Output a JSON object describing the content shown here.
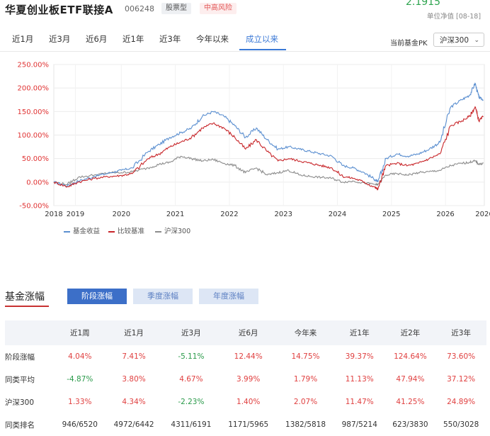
{
  "header": {
    "fund_name": "华夏创业板ETF联接A",
    "fund_code": "006248",
    "tag_type": "股票型",
    "tag_risk": "中高风险",
    "nav_value": "2.1915",
    "nav_label": "单位净值 [08-18]"
  },
  "tabs": [
    {
      "label": "近1月",
      "active": false
    },
    {
      "label": "近3月",
      "active": false
    },
    {
      "label": "近6月",
      "active": false
    },
    {
      "label": "近1年",
      "active": false
    },
    {
      "label": "近3年",
      "active": false
    },
    {
      "label": "今年以来",
      "active": false
    },
    {
      "label": "成立以来",
      "active": true
    }
  ],
  "pk": {
    "label": "当前基金PK",
    "selected": "沪深300"
  },
  "chart_data": {
    "type": "line",
    "y_ticks": [
      "250.00%",
      "200.00%",
      "150.00%",
      "100.00%",
      "50.00%",
      "0.00%",
      "-50.00%"
    ],
    "ylim": [
      -50,
      250
    ],
    "x_ticks": [
      "2018",
      "2019",
      "2020",
      "2021",
      "2022",
      "2023",
      "2024",
      "2025",
      "2026",
      "2026"
    ],
    "grid": true,
    "legend_position": "bottom-left",
    "series": [
      {
        "name": "基金收益",
        "color": "#5b8fd0",
        "x": [
          2018.75,
          2019.0,
          2019.2,
          2019.5,
          2019.8,
          2020.0,
          2020.2,
          2020.5,
          2020.7,
          2020.9,
          2021.1,
          2021.3,
          2021.5,
          2021.7,
          2021.9,
          2022.1,
          2022.3,
          2022.5,
          2022.7,
          2022.9,
          2023.1,
          2023.3,
          2023.5,
          2023.7,
          2023.9,
          2024.1,
          2024.3,
          2024.5,
          2024.7,
          2024.75,
          2024.9,
          2025.1,
          2025.3,
          2025.5,
          2025.7,
          2025.9,
          2026.1,
          2026.3,
          2026.45,
          2026.55,
          2026.62,
          2026.7
        ],
        "values": [
          0,
          -8,
          2,
          12,
          20,
          25,
          30,
          65,
          80,
          95,
          105,
          115,
          140,
          150,
          140,
          120,
          95,
          115,
          90,
          70,
          75,
          70,
          65,
          60,
          55,
          35,
          30,
          20,
          5,
          0,
          50,
          60,
          55,
          60,
          70,
          85,
          160,
          175,
          185,
          210,
          180,
          175
        ]
      },
      {
        "name": "比较基准",
        "color": "#c8262a",
        "x": [
          2018.75,
          2019.0,
          2019.2,
          2019.5,
          2019.8,
          2020.0,
          2020.2,
          2020.5,
          2020.7,
          2020.9,
          2021.1,
          2021.3,
          2021.5,
          2021.7,
          2021.9,
          2022.1,
          2022.3,
          2022.5,
          2022.7,
          2022.9,
          2023.1,
          2023.3,
          2023.5,
          2023.7,
          2023.9,
          2024.1,
          2024.3,
          2024.5,
          2024.7,
          2024.75,
          2024.9,
          2025.1,
          2025.3,
          2025.5,
          2025.7,
          2025.9,
          2026.1,
          2026.3,
          2026.45,
          2026.55,
          2026.62,
          2026.7
        ],
        "values": [
          0,
          -10,
          0,
          8,
          12,
          14,
          18,
          50,
          60,
          75,
          85,
          95,
          115,
          125,
          115,
          95,
          70,
          90,
          65,
          45,
          50,
          45,
          40,
          35,
          30,
          12,
          8,
          0,
          -12,
          -15,
          35,
          40,
          35,
          40,
          50,
          60,
          120,
          130,
          140,
          160,
          130,
          140
        ]
      },
      {
        "name": "沪深300",
        "color": "#8c8c8c",
        "x": [
          2018.75,
          2019.0,
          2019.2,
          2019.5,
          2019.8,
          2020.0,
          2020.2,
          2020.5,
          2020.7,
          2020.9,
          2021.1,
          2021.3,
          2021.5,
          2021.7,
          2021.9,
          2022.1,
          2022.3,
          2022.5,
          2022.7,
          2022.9,
          2023.1,
          2023.3,
          2023.5,
          2023.7,
          2023.9,
          2024.1,
          2024.3,
          2024.5,
          2024.7,
          2024.75,
          2024.9,
          2025.1,
          2025.3,
          2025.5,
          2025.7,
          2025.9,
          2026.1,
          2026.3,
          2026.45,
          2026.55,
          2026.62,
          2026.7
        ],
        "values": [
          0,
          -5,
          10,
          15,
          20,
          20,
          22,
          30,
          38,
          42,
          55,
          50,
          45,
          48,
          40,
          35,
          20,
          30,
          15,
          20,
          25,
          15,
          12,
          10,
          8,
          0,
          2,
          -2,
          -5,
          -5,
          15,
          18,
          15,
          20,
          22,
          25,
          35,
          40,
          42,
          45,
          38,
          40
        ]
      }
    ]
  },
  "section": {
    "title": "基金涨幅",
    "buttons": [
      {
        "label": "阶段涨幅",
        "active": true
      },
      {
        "label": "季度涨幅",
        "active": false
      },
      {
        "label": "年度涨幅",
        "active": false
      }
    ]
  },
  "table": {
    "headers": [
      "",
      "近1周",
      "近1月",
      "近3月",
      "近6月",
      "今年来",
      "近1年",
      "近2年",
      "近3年"
    ],
    "rows": [
      {
        "label": "阶段涨幅",
        "cells": [
          {
            "v": "4.04%",
            "c": "up"
          },
          {
            "v": "7.41%",
            "c": "up"
          },
          {
            "v": "-5.11%",
            "c": "down"
          },
          {
            "v": "12.44%",
            "c": "up"
          },
          {
            "v": "14.75%",
            "c": "up"
          },
          {
            "v": "39.37%",
            "c": "up"
          },
          {
            "v": "124.64%",
            "c": "up"
          },
          {
            "v": "73.60%",
            "c": "up"
          }
        ]
      },
      {
        "label": "同类平均",
        "cells": [
          {
            "v": "-4.87%",
            "c": "down"
          },
          {
            "v": "3.80%",
            "c": "up"
          },
          {
            "v": "4.67%",
            "c": "up"
          },
          {
            "v": "3.99%",
            "c": "up"
          },
          {
            "v": "1.79%",
            "c": "up"
          },
          {
            "v": "11.13%",
            "c": "up"
          },
          {
            "v": "47.94%",
            "c": "up"
          },
          {
            "v": "37.12%",
            "c": "up"
          }
        ]
      },
      {
        "label": "沪深300",
        "cells": [
          {
            "v": "1.33%",
            "c": "up"
          },
          {
            "v": "4.34%",
            "c": "up"
          },
          {
            "v": "-2.23%",
            "c": "down"
          },
          {
            "v": "1.40%",
            "c": "up"
          },
          {
            "v": "2.07%",
            "c": "up"
          },
          {
            "v": "11.47%",
            "c": "up"
          },
          {
            "v": "41.25%",
            "c": "up"
          },
          {
            "v": "24.89%",
            "c": "up"
          }
        ]
      },
      {
        "label": "同类排名",
        "cells": [
          {
            "v": "946/6520",
            "c": "neutral"
          },
          {
            "v": "4972/6442",
            "c": "neutral"
          },
          {
            "v": "4311/6191",
            "c": "neutral"
          },
          {
            "v": "1171/5965",
            "c": "neutral"
          },
          {
            "v": "1382/5818",
            "c": "neutral"
          },
          {
            "v": "987/5214",
            "c": "neutral"
          },
          {
            "v": "623/3830",
            "c": "neutral"
          },
          {
            "v": "550/3028",
            "c": "neutral"
          }
        ]
      }
    ]
  }
}
